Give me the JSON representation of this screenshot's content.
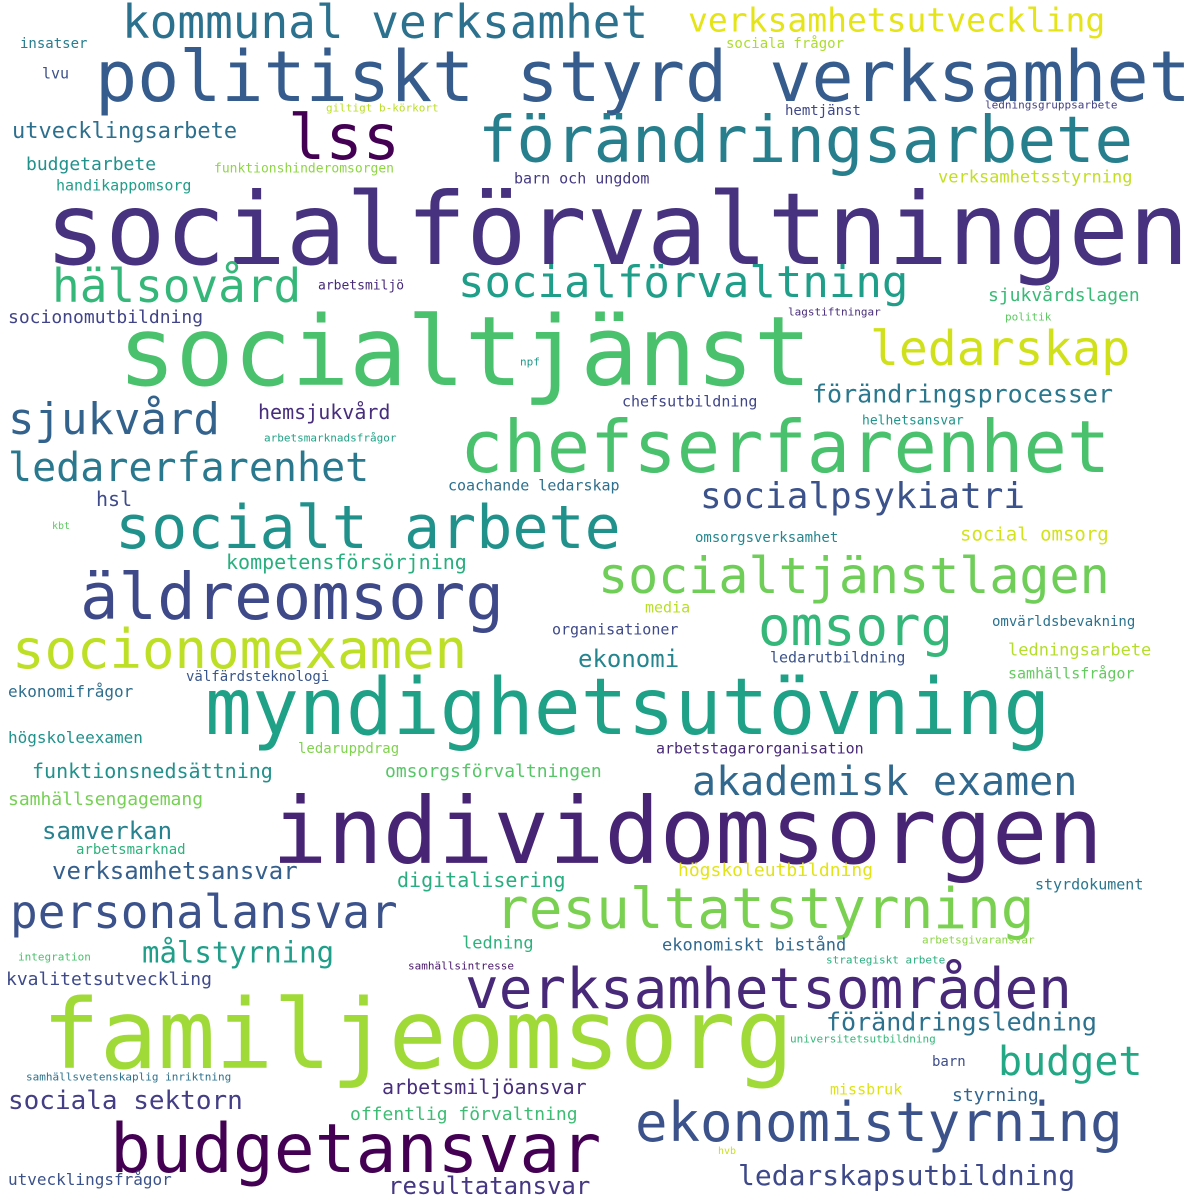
{
  "words": [
    {
      "text": "socialförvaltningen",
      "color": "#46327e"
    },
    {
      "text": "socialtjänst",
      "color": "#4ac16d"
    },
    {
      "text": "individomsorgen",
      "color": "#482475"
    },
    {
      "text": "familjeomsorg",
      "color": "#a0da39"
    },
    {
      "text": "myndighetsutövning",
      "color": "#1fa187"
    },
    {
      "text": "chefserfarenhet",
      "color": "#4ac16d"
    },
    {
      "text": "politiskt styrd verksamhet",
      "color": "#365c8d"
    },
    {
      "text": "förändringsarbete",
      "color": "#277f8e"
    },
    {
      "text": "budgetansvar",
      "color": "#440154"
    },
    {
      "text": "verksamhetsområden",
      "color": "#482878"
    },
    {
      "text": "resultatstyrning",
      "color": "#7ad151"
    },
    {
      "text": "äldreomsorg",
      "color": "#3e4989"
    },
    {
      "text": "socialt arbete",
      "color": "#21918c"
    },
    {
      "text": "ekonomistyrning",
      "color": "#3b528b"
    },
    {
      "text": "lss",
      "color": "#440154"
    },
    {
      "text": "socionomexamen",
      "color": "#bddf26"
    },
    {
      "text": "socialtjänstlagen",
      "color": "#6ece58"
    },
    {
      "text": "kommunal verksamhet",
      "color": "#2c728e"
    },
    {
      "text": "personalansvar",
      "color": "#3b528b"
    },
    {
      "text": "socialförvaltning",
      "color": "#1f9e89"
    },
    {
      "text": "omsorg",
      "color": "#35b779"
    },
    {
      "text": "ledarskap",
      "color": "#d0e11c"
    },
    {
      "text": "akademisk examen",
      "color": "#31688e"
    },
    {
      "text": "ledarerfarenhet",
      "color": "#2a788e"
    },
    {
      "text": "socialpsykiatri",
      "color": "#3b528b"
    },
    {
      "text": "hälsovård",
      "color": "#35b779"
    },
    {
      "text": "sjukvård",
      "color": "#33638d"
    },
    {
      "text": "verksamhetsutveckling",
      "color": "#e5e419"
    },
    {
      "text": "budget",
      "color": "#22a884"
    },
    {
      "text": "ledarskapsutbildning",
      "color": "#3e4989"
    },
    {
      "text": "förändringsprocesser",
      "color": "#2a788e"
    },
    {
      "text": "målstyrning",
      "color": "#1f9e89"
    },
    {
      "text": "förändringsledning",
      "color": "#2c728e"
    },
    {
      "text": "sociala sektorn",
      "color": "#433e85"
    },
    {
      "text": "resultatansvar",
      "color": "#453781"
    },
    {
      "text": "verksamhetsansvar",
      "color": "#355f8d"
    },
    {
      "text": "samverkan",
      "color": "#26828e"
    },
    {
      "text": "ekonomi",
      "color": "#25858e"
    },
    {
      "text": "utvecklingsarbete",
      "color": "#2d708e"
    },
    {
      "text": "hemsjukvård",
      "color": "#472d7b"
    },
    {
      "text": "funktionsnedsättning",
      "color": "#21918c"
    },
    {
      "text": "arbetsmiljöansvar",
      "color": "#472f7d"
    },
    {
      "text": "digitalisering",
      "color": "#28ae80"
    },
    {
      "text": "kompetensförsörjning",
      "color": "#29af7f"
    },
    {
      "text": "omsorgsförvaltningen",
      "color": "#56c667"
    },
    {
      "text": "kvalitetsutveckling",
      "color": "#3e4a89"
    },
    {
      "text": "budgetarbete",
      "color": "#21918c"
    },
    {
      "text": "offentlig förvaltning",
      "color": "#3dbc74"
    },
    {
      "text": "socionomutbildning",
      "color": "#414487"
    },
    {
      "text": "styrning",
      "color": "#32658e"
    },
    {
      "text": "högskoleutbildning",
      "color": "#e2e418"
    },
    {
      "text": "samhällsengagemang",
      "color": "#75d054"
    },
    {
      "text": "verksamhetsstyrning",
      "color": "#c2df23"
    },
    {
      "text": "ledningsarbete",
      "color": "#b5de2b"
    },
    {
      "text": "social omsorg",
      "color": "#d2e21b"
    },
    {
      "text": "hsl",
      "color": "#3e4a89"
    },
    {
      "text": "ledning",
      "color": "#2db27d"
    },
    {
      "text": "ekonomiskt bistånd",
      "color": "#31688e"
    },
    {
      "text": "sjukvårdslagen",
      "color": "#3aba76"
    },
    {
      "text": "coachande ledarskap",
      "color": "#2d708e"
    },
    {
      "text": "barn och ungdom",
      "color": "#443983"
    },
    {
      "text": "sociala frågor",
      "color": "#addc30"
    },
    {
      "text": "chefsutbildning",
      "color": "#404688"
    },
    {
      "text": "organisationer",
      "color": "#3e4989"
    },
    {
      "text": "ekonomifrågor",
      "color": "#2e6e8e"
    },
    {
      "text": "högskoleexamen",
      "color": "#20928c"
    },
    {
      "text": "samhällsfrågor",
      "color": "#63cb5f"
    },
    {
      "text": "ledarutbildning",
      "color": "#3b528b"
    },
    {
      "text": "arbetstagarorganisation",
      "color": "#482878"
    },
    {
      "text": "omvärldsbevakning",
      "color": "#2c728e"
    },
    {
      "text": "handikappomsorg",
      "color": "#1f9e89"
    },
    {
      "text": "välfärdsteknologi",
      "color": "#39568c"
    },
    {
      "text": "styrdokument",
      "color": "#2a768e"
    },
    {
      "text": "arbetsmiljö",
      "color": "#472a7a"
    },
    {
      "text": "hemtjänst",
      "color": "#3f4788"
    },
    {
      "text": "insatser",
      "color": "#287d8e"
    },
    {
      "text": "lvu",
      "color": "#3c508b"
    },
    {
      "text": "omsorgsverksamhet",
      "color": "#24868e"
    },
    {
      "text": "missbruk",
      "color": "#dde318"
    },
    {
      "text": "barn",
      "color": "#3d4d8a"
    },
    {
      "text": "helhetsansvar",
      "color": "#1f958b"
    },
    {
      "text": "media",
      "color": "#b8de29"
    },
    {
      "text": "npf",
      "color": "#1f9a8a"
    },
    {
      "text": "arbetsmarknad",
      "color": "#2db27d"
    },
    {
      "text": "ledaruppdrag",
      "color": "#7fd34e"
    },
    {
      "text": "funktionshinderomsorgen",
      "color": "#8ed645"
    },
    {
      "text": "utvecklingsfrågor",
      "color": "#3b528b"
    },
    {
      "text": "ledningsgruppsarbete",
      "color": "#423f85"
    },
    {
      "text": "politik",
      "color": "#5ec962"
    },
    {
      "text": "lagstiftningar",
      "color": "#472c7a"
    },
    {
      "text": "giltigt b-körkort",
      "color": "#bade28"
    },
    {
      "text": "arbetsmarknadsfrågor",
      "color": "#20a386"
    },
    {
      "text": "strategiskt arbete",
      "color": "#29af7f"
    },
    {
      "text": "samhällsintresse",
      "color": "#481769"
    },
    {
      "text": "arbetsgivaransvar",
      "color": "#8bd646"
    },
    {
      "text": "universitetsutbildning",
      "color": "#35b779"
    },
    {
      "text": "integration",
      "color": "#4ac16d"
    },
    {
      "text": "samhällsvetenskaplig inriktning",
      "color": "#2c728e"
    },
    {
      "text": "kbt",
      "color": "#5ec962"
    },
    {
      "text": "hvb",
      "color": "#c8e020"
    }
  ]
}
